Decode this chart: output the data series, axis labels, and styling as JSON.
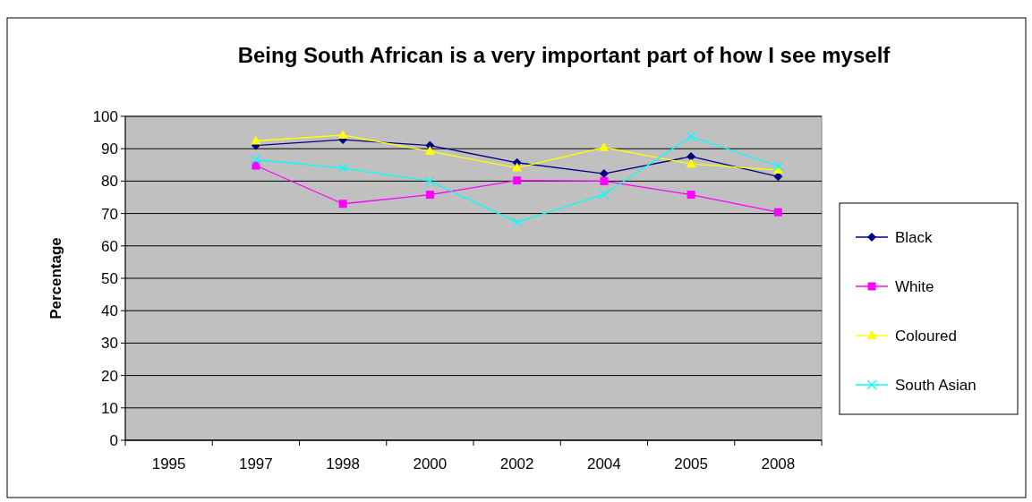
{
  "chart_data": {
    "type": "line",
    "title": "Being South African is a very important part of how I see myself",
    "ylabel": "Percentage",
    "categories": [
      "1995",
      "1997",
      "1998",
      "2000",
      "2002",
      "2004",
      "2005",
      "2008"
    ],
    "ylim": [
      0,
      100
    ],
    "yticks": [
      0,
      10,
      20,
      30,
      40,
      50,
      60,
      70,
      80,
      90,
      100
    ],
    "grid": "y",
    "legend": "right",
    "series": [
      {
        "name": "Black",
        "color": "#000080",
        "marker": "diamond",
        "values": [
          null,
          91,
          92.8,
          91,
          85.7,
          82.3,
          87.6,
          81.4
        ]
      },
      {
        "name": "White",
        "color": "#ff00ff",
        "marker": "square",
        "values": [
          null,
          84.8,
          73,
          75.8,
          80.2,
          80,
          75.8,
          70.4
        ]
      },
      {
        "name": "Coloured",
        "color": "#ffff00",
        "marker": "triangle",
        "values": [
          null,
          92.4,
          94.2,
          89.2,
          84.1,
          90.4,
          85.3,
          83.4
        ]
      },
      {
        "name": "South Asian",
        "color": "#00ffff",
        "marker": "cross",
        "values": [
          null,
          86.6,
          84,
          80,
          67.3,
          75.9,
          93.8,
          84.6
        ]
      }
    ]
  }
}
